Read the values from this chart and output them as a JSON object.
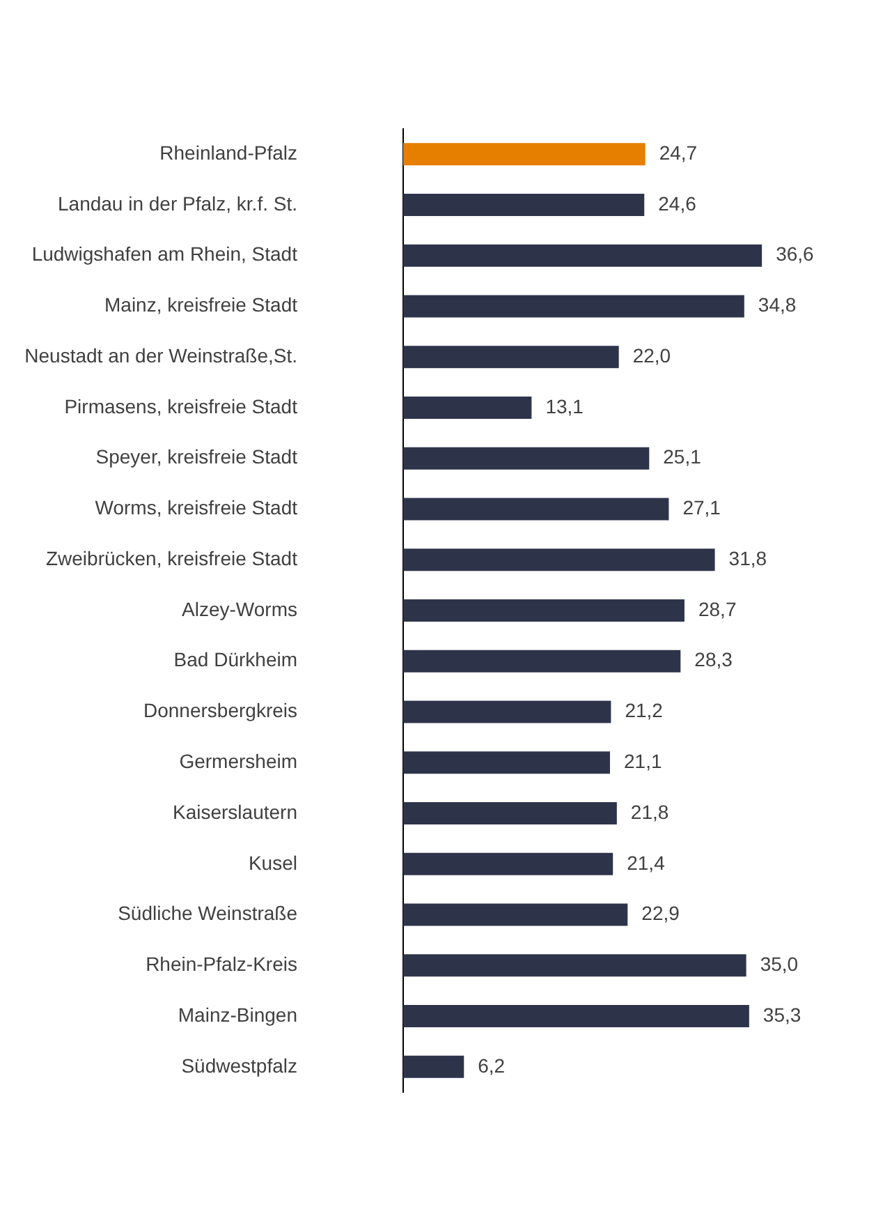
{
  "chart_data": {
    "type": "bar",
    "orientation": "horizontal",
    "categories": [
      "Rheinland-Pfalz",
      "Landau in der Pfalz, kr.f. St.",
      "Ludwigshafen am Rhein, Stadt",
      "Mainz, kreisfreie Stadt",
      "Neustadt an der Weinstraße,St.",
      "Pirmasens, kreisfreie Stadt",
      "Speyer, kreisfreie Stadt",
      "Worms, kreisfreie Stadt",
      "Zweibrücken, kreisfreie Stadt",
      "Alzey-Worms",
      "Bad Dürkheim",
      "Donnersbergkreis",
      "Germersheim",
      "Kaiserslautern",
      "Kusel",
      "Südliche Weinstraße",
      "Rhein-Pfalz-Kreis",
      "Mainz-Bingen",
      "Südwestpfalz"
    ],
    "values": [
      24.7,
      24.6,
      36.6,
      34.8,
      22.0,
      13.1,
      25.1,
      27.1,
      31.8,
      28.7,
      28.3,
      21.2,
      21.1,
      21.8,
      21.4,
      22.9,
      35.0,
      35.3,
      6.2
    ],
    "value_labels": [
      "24,7",
      "24,6",
      "36,6",
      "34,8",
      "22,0",
      "13,1",
      "25,1",
      "27,1",
      "31,8",
      "28,7",
      "28,3",
      "21,2",
      "21,1",
      "21,8",
      "21,4",
      "22,9",
      "35,0",
      "35,3",
      "6,2"
    ],
    "colors": [
      "#e67e00",
      "#2d344a",
      "#2d344a",
      "#2d344a",
      "#2d344a",
      "#2d344a",
      "#2d344a",
      "#2d344a",
      "#2d344a",
      "#2d344a",
      "#2d344a",
      "#2d344a",
      "#2d344a",
      "#2d344a",
      "#2d344a",
      "#2d344a",
      "#2d344a",
      "#2d344a",
      "#2d344a"
    ],
    "tick_labels": "y",
    "grid": false,
    "legend": false
  }
}
